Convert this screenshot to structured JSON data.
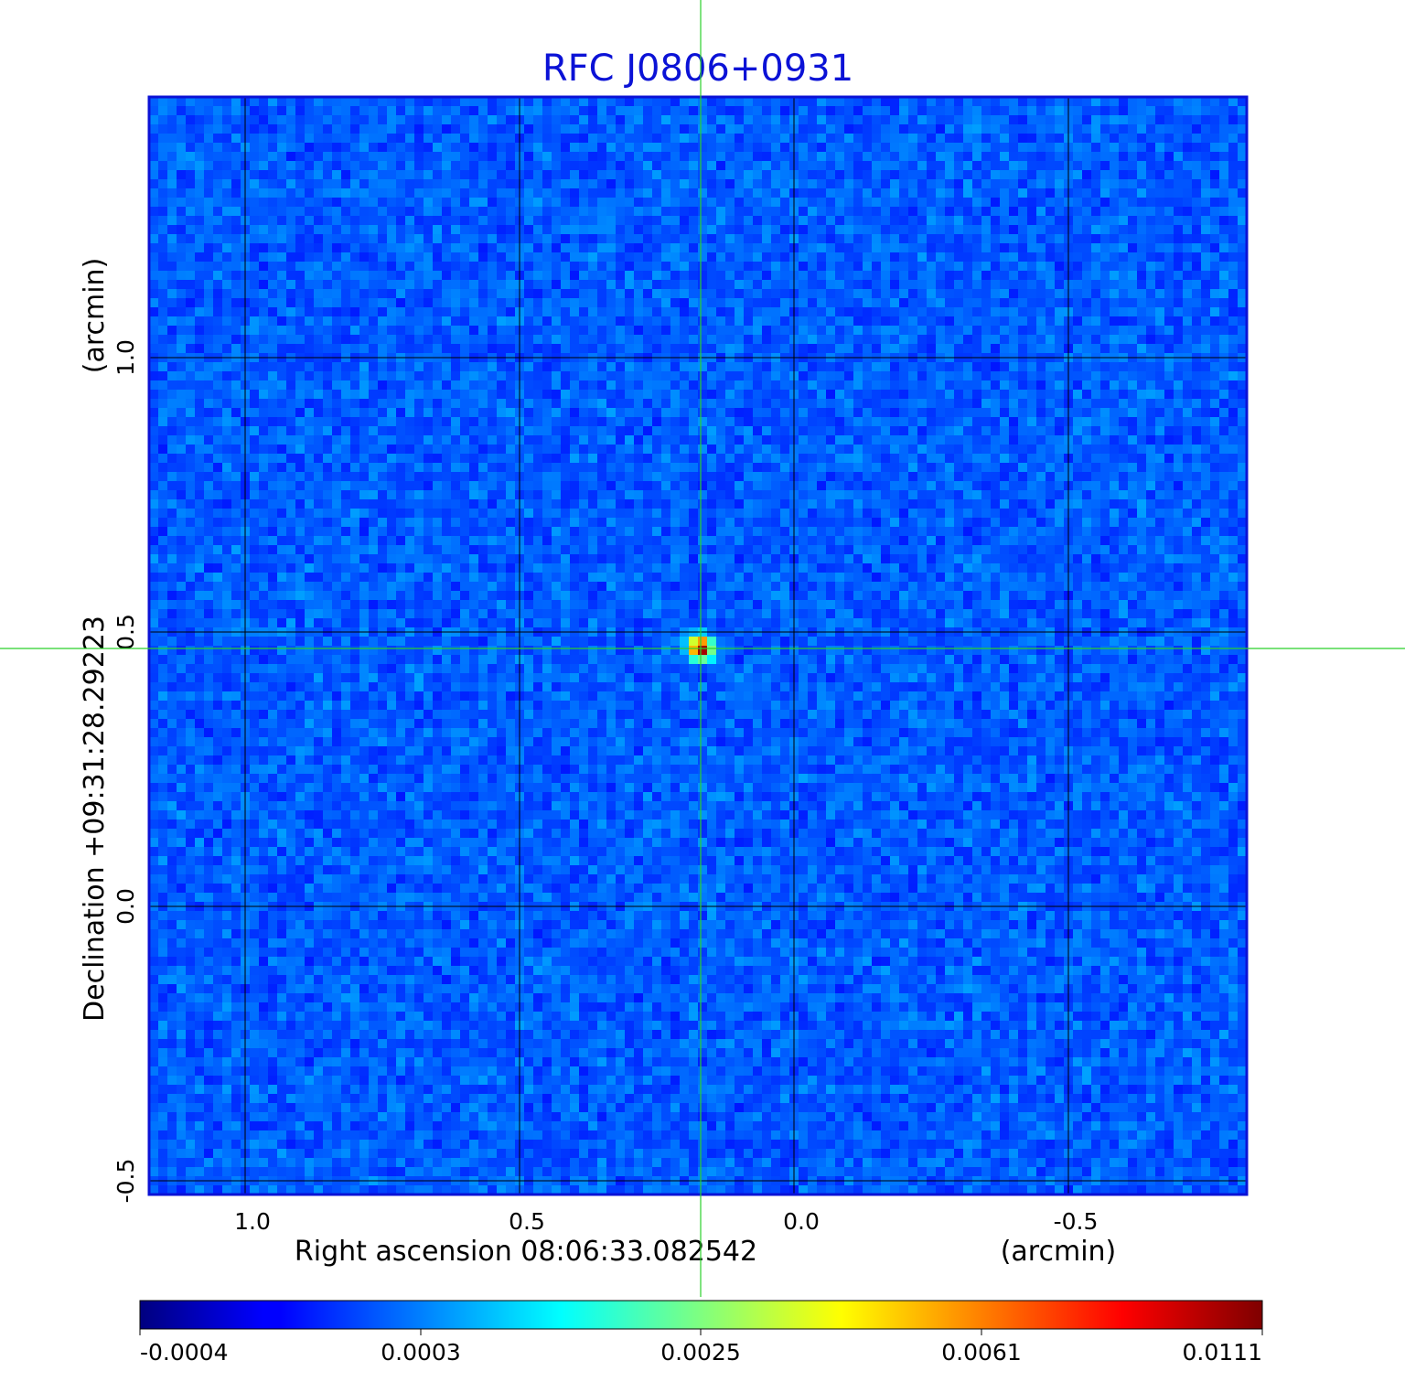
{
  "chart_data": {
    "type": "heatmap",
    "title": "RFC J0806+0931",
    "xlabel": "Right ascension  08:06:33.082542",
    "xunit": "(arcmin)",
    "ylabel": "Declination  +09:31:28.29223",
    "yunit": "(arcmin)",
    "x_ticks": [
      "1.0",
      "0.5",
      "0.0",
      "-0.5"
    ],
    "x_tick_values": [
      1.0,
      0.5,
      0.0,
      -0.5
    ],
    "y_ticks": [
      "1.0",
      "0.5",
      "0.0",
      "-0.5"
    ],
    "y_tick_values": [
      1.0,
      0.5,
      0.0,
      -0.5
    ],
    "xlim": [
      1.175,
      -0.825
    ],
    "ylim": [
      -0.525,
      1.475
    ],
    "grid": true,
    "crosshair": {
      "x": 0.17,
      "y": 0.47
    },
    "source_peak": {
      "x": 0.17,
      "y": 0.47,
      "value": 0.0111
    },
    "colorbar": {
      "colormap": "jet",
      "tick_labels": [
        "-0.0004",
        "0.0003",
        "0.0025",
        "0.0061",
        "0.0111"
      ],
      "tick_values": [
        -0.0004,
        0.0003,
        0.0025,
        0.0061,
        0.0111
      ],
      "range": [
        -0.0004,
        0.0111
      ]
    },
    "colors": {
      "title": "#0b12d6",
      "frame": "#0b12d6",
      "crosshair": "#2bd02b",
      "grid": "#000000"
    }
  }
}
